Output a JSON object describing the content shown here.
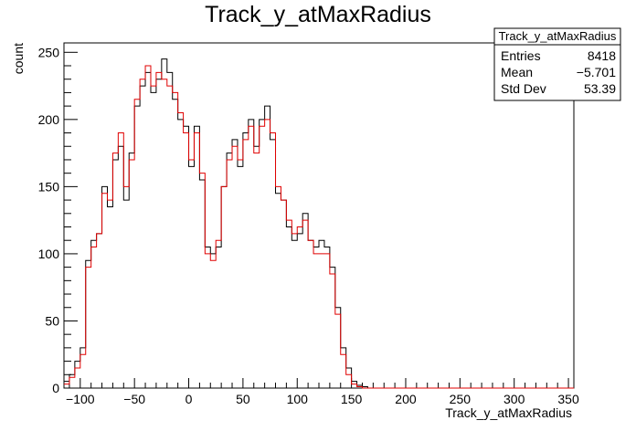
{
  "chart_data": {
    "type": "histogram",
    "title": "Track_y_atMaxRadius",
    "xlabel": "Track_y_atMaxRadius",
    "ylabel": "count",
    "xlim": [
      -115,
      355
    ],
    "ylim": [
      0,
      257
    ],
    "grid": false,
    "bin_width": 5,
    "x_start": -115,
    "x_ticks": [
      -100,
      -50,
      0,
      50,
      100,
      150,
      200,
      250,
      300,
      350
    ],
    "y_ticks": [
      0,
      50,
      100,
      150,
      200,
      250
    ],
    "stats_box": {
      "title": "Track_y_atMaxRadius",
      "rows": [
        {
          "label": "Entries",
          "value": "8418"
        },
        {
          "label": "Mean",
          "value": "−5.701"
        },
        {
          "label": "Std Dev",
          "value": "53.39"
        }
      ]
    },
    "series": [
      {
        "color": "#000000",
        "values": [
          5,
          10,
          20,
          30,
          95,
          110,
          115,
          150,
          135,
          170,
          180,
          140,
          175,
          210,
          225,
          235,
          220,
          230,
          245,
          235,
          215,
          200,
          195,
          165,
          195,
          155,
          105,
          100,
          105,
          150,
          175,
          185,
          165,
          190,
          200,
          180,
          200,
          210,
          185,
          145,
          140,
          120,
          110,
          115,
          130,
          110,
          105,
          110,
          105,
          90,
          60,
          30,
          15,
          5,
          2,
          1,
          0,
          0,
          0,
          0,
          0,
          0,
          0,
          0,
          0,
          0,
          0,
          0,
          0,
          0,
          0,
          0,
          0,
          0,
          0,
          0,
          0,
          0,
          0,
          0,
          0,
          0,
          0,
          0,
          0,
          0,
          0,
          0,
          0,
          0,
          0,
          0,
          0,
          0
        ]
      },
      {
        "color": "#e00000",
        "values": [
          3,
          8,
          15,
          25,
          90,
          105,
          115,
          145,
          140,
          175,
          190,
          150,
          170,
          215,
          230,
          240,
          225,
          235,
          230,
          225,
          220,
          205,
          190,
          170,
          190,
          160,
          100,
          95,
          110,
          150,
          170,
          180,
          170,
          185,
          195,
          175,
          195,
          200,
          190,
          150,
          140,
          125,
          115,
          120,
          125,
          110,
          100,
          100,
          100,
          85,
          55,
          25,
          10,
          3,
          1,
          0,
          0,
          0,
          0,
          0,
          0,
          0,
          0,
          0,
          0,
          0,
          0,
          0,
          0,
          0,
          0,
          0,
          0,
          0,
          0,
          0,
          0,
          0,
          0,
          0,
          0,
          0,
          0,
          0,
          0,
          0,
          0,
          0,
          0,
          0,
          0,
          0,
          0,
          0
        ]
      }
    ]
  }
}
